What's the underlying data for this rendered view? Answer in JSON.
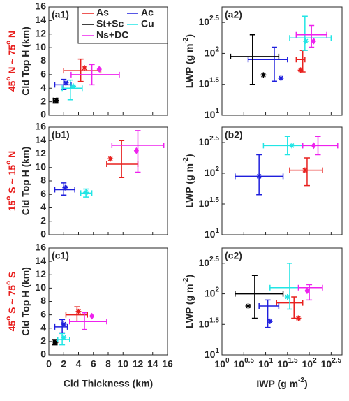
{
  "chart_data": [
    {
      "type": "scatter",
      "label": "(a1)",
      "row_label": [
        "45",
        "o",
        " N ~ 75",
        "o",
        " N"
      ],
      "ylabel": "Cld Top H (km)",
      "xlim": [
        0,
        16
      ],
      "ylim": [
        0,
        16
      ],
      "xticks": [
        0,
        2,
        4,
        6,
        8,
        10,
        12,
        14,
        16
      ],
      "yticks": [
        0,
        2,
        4,
        6,
        8,
        10,
        12,
        14,
        16
      ],
      "legend": "top-right",
      "series": [
        {
          "name": "As",
          "color": "#e8201e",
          "marker": "star",
          "x": 4.3,
          "y": 6.6,
          "xerr": [
            2,
            7
          ],
          "yerr": [
            5,
            8.3
          ],
          "marker_x": 4.8,
          "marker_y": 7.0
        },
        {
          "name": "Ac",
          "color": "#1f1fdd",
          "marker": "star",
          "x": 2,
          "y": 4.5,
          "xerr": [
            0.8,
            3
          ],
          "yerr": [
            3.8,
            5.3
          ],
          "marker_x": 2.3,
          "marker_y": 4.8
        },
        {
          "name": "St+Sc",
          "color": "#000000",
          "marker": "star",
          "x": 0.9,
          "y": 2.2,
          "xerr": [
            0.6,
            1.2
          ],
          "yerr": [
            1.8,
            2.5
          ],
          "marker_x": 1.0,
          "marker_y": 2.2
        },
        {
          "name": "Cu",
          "color": "#22e5e5",
          "marker": "star",
          "x": 2.9,
          "y": 4.0,
          "xerr": [
            1.8,
            4.5
          ],
          "yerr": [
            2.3,
            5.2
          ],
          "marker_x": 3.3,
          "marker_y": 4.3
        },
        {
          "name": "Ns+DC",
          "color": "#ee22ee",
          "marker": "diamond",
          "x": 5.8,
          "y": 6.0,
          "xerr": [
            3,
            9.5
          ],
          "yerr": [
            4.5,
            7.5
          ],
          "marker_x": 6.8,
          "marker_y": 6.8
        }
      ]
    },
    {
      "type": "scatter",
      "label": "(a2)",
      "ylabel": [
        "LWP (g m",
        "-2",
        ")"
      ],
      "log": true,
      "xlim": [
        1,
        562.3
      ],
      "ylim": [
        10,
        562.3
      ],
      "xticks": [
        {
          "value": 1,
          "label": "10",
          "exp": "0"
        },
        {
          "value": 3.162,
          "label": "10",
          "exp": "0.5"
        },
        {
          "value": 10,
          "label": "10",
          "exp": "1"
        },
        {
          "value": 31.62,
          "label": "10",
          "exp": "1.5"
        },
        {
          "value": 100,
          "label": "10",
          "exp": "2"
        },
        {
          "value": 316.2,
          "label": "10",
          "exp": "2.5"
        }
      ],
      "yticks": [
        {
          "value": 10,
          "label": "10",
          "exp": "1"
        },
        {
          "value": 31.62,
          "label": "10",
          "exp": "1.5"
        },
        {
          "value": 100,
          "label": "10",
          "exp": "2"
        },
        {
          "value": 316.2,
          "label": "10",
          "exp": "2.5"
        }
      ],
      "series": [
        {
          "color": "#e8201e",
          "marker": "star",
          "x": 70.8,
          "y": 79.4,
          "xerr": [
            50.1,
            79.4
          ],
          "yerr": [
            50.1,
            112
          ],
          "marker_x": 63.1,
          "marker_y": 53.7
        },
        {
          "color": "#1f1fdd",
          "marker": "star",
          "x": 15.8,
          "y": 79.4,
          "xerr": [
            3.98,
            31.6
          ],
          "yerr": [
            35.5,
            126
          ],
          "marker_x": 22.4,
          "marker_y": 39.8
        },
        {
          "color": "#000000",
          "marker": "star",
          "x": 5.01,
          "y": 89.1,
          "xerr": [
            1.58,
            20.0
          ],
          "yerr": [
            31.6,
            200
          ],
          "marker_x": 8.91,
          "marker_y": 44.7
        },
        {
          "color": "#22e5e5",
          "marker": "star",
          "x": 79.4,
          "y": 178,
          "xerr": [
            35.5,
            316
          ],
          "yerr": [
            112,
            398
          ],
          "marker_x": 83.2,
          "marker_y": 158
        },
        {
          "color": "#ee22ee",
          "marker": "diamond",
          "x": 112,
          "y": 200,
          "xerr": [
            50.1,
            251
          ],
          "yerr": [
            126,
            282
          ],
          "marker_x": 126,
          "marker_y": 158
        }
      ]
    },
    {
      "type": "scatter",
      "label": "(b1)",
      "row_label": [
        "15",
        "o",
        " S ~ 15",
        "o",
        " N"
      ],
      "ylabel": "Cld Top H (km)",
      "xlim": [
        0,
        16
      ],
      "ylim": [
        0,
        16
      ],
      "xticks": [
        0,
        2,
        4,
        6,
        8,
        10,
        12,
        14,
        16
      ],
      "yticks": [
        0,
        2,
        4,
        6,
        8,
        10,
        12,
        14,
        16
      ],
      "series": [
        {
          "color": "#e8201e",
          "marker": "star",
          "x": 9.8,
          "y": 10.5,
          "xerr": [
            7.8,
            12
          ],
          "yerr": [
            8.5,
            14
          ],
          "marker_x": 8.3,
          "marker_y": 11.3
        },
        {
          "color": "#1f1fdd",
          "marker": "star",
          "x": 2,
          "y": 6.7,
          "xerr": [
            0.8,
            3.5
          ],
          "yerr": [
            5.9,
            7.7
          ],
          "marker_x": 2.2,
          "marker_y": 7.0
        },
        {
          "color": "#22e5e5",
          "marker": "star",
          "x": 5,
          "y": 6.2,
          "xerr": [
            4.3,
            5.8
          ],
          "yerr": [
            5.6,
            6.8
          ],
          "marker_x": 5.0,
          "marker_y": 6.3
        },
        {
          "color": "#ee22ee",
          "marker": "diamond",
          "x": 12,
          "y": 13.3,
          "xerr": [
            8.5,
            15.5
          ],
          "yerr": [
            9.3,
            15.5
          ],
          "marker_x": 11.8,
          "marker_y": 12.5
        }
      ]
    },
    {
      "type": "scatter",
      "label": "(b2)",
      "ylabel": [
        "LWP (g m",
        "-2",
        ")"
      ],
      "log": true,
      "xlim": [
        1,
        562.3
      ],
      "ylim": [
        10,
        562.3
      ],
      "xticks": [
        {
          "value": 1,
          "label": "10",
          "exp": "0"
        },
        {
          "value": 3.162,
          "label": "10",
          "exp": "0.5"
        },
        {
          "value": 10,
          "label": "10",
          "exp": "1"
        },
        {
          "value": 31.62,
          "label": "10",
          "exp": "1.5"
        },
        {
          "value": 100,
          "label": "10",
          "exp": "2"
        },
        {
          "value": 316.2,
          "label": "10",
          "exp": "2.5"
        }
      ],
      "yticks": [
        {
          "value": 10,
          "label": "10",
          "exp": "1"
        },
        {
          "value": 31.62,
          "label": "10",
          "exp": "1.5"
        },
        {
          "value": 100,
          "label": "10",
          "exp": "2"
        },
        {
          "value": 316.2,
          "label": "10",
          "exp": "2.5"
        }
      ],
      "series": [
        {
          "color": "#e8201e",
          "marker": "star",
          "x": 89.1,
          "y": 112,
          "xerr": [
            35.5,
            200
          ],
          "yerr": [
            63.1,
            178
          ],
          "marker_x": 79.4,
          "marker_y": 112
        },
        {
          "color": "#1f1fdd",
          "marker": "star",
          "x": 7.08,
          "y": 89.1,
          "xerr": [
            2.0,
            25.1
          ],
          "yerr": [
            44.7,
            200
          ],
          "marker_x": 7.08,
          "marker_y": 89.1
        },
        {
          "color": "#22e5e5",
          "marker": "star",
          "x": 31.6,
          "y": 282,
          "xerr": [
            8.91,
            70.8
          ],
          "yerr": [
            200,
            398
          ],
          "marker_x": 39.8,
          "marker_y": 282
        },
        {
          "color": "#ee22ee",
          "marker": "diamond",
          "x": 158,
          "y": 282,
          "xerr": [
            70.8,
            447
          ],
          "yerr": [
            200,
            398
          ],
          "marker_x": 126,
          "marker_y": 282
        }
      ]
    },
    {
      "type": "scatter",
      "label": "(c1)",
      "row_label": [
        "45",
        "o",
        " S ~ 75",
        "o",
        " S"
      ],
      "ylabel": "Cld Top H (km)",
      "xlabel": "Cld Thickness (km)",
      "xlim": [
        0,
        16
      ],
      "ylim": [
        0,
        16
      ],
      "xticks": [
        0,
        2,
        4,
        6,
        8,
        10,
        12,
        14,
        16
      ],
      "yticks": [
        0,
        2,
        4,
        6,
        8,
        10,
        12,
        14,
        16
      ],
      "series": [
        {
          "color": "#e8201e",
          "marker": "star",
          "x": 3.8,
          "y": 6.0,
          "xerr": [
            2.3,
            5.2
          ],
          "yerr": [
            5.0,
            7.2
          ],
          "marker_x": 4.0,
          "marker_y": 6.5
        },
        {
          "color": "#1f1fdd",
          "marker": "star",
          "x": 1.8,
          "y": 4.2,
          "xerr": [
            0.8,
            2.5
          ],
          "yerr": [
            3.3,
            5.3
          ],
          "marker_x": 2.0,
          "marker_y": 4.6
        },
        {
          "color": "#000000",
          "marker": "star",
          "x": 0.8,
          "y": 1.9,
          "xerr": [
            0.6,
            1.1
          ],
          "yerr": [
            1.5,
            2.3
          ],
          "marker_x": 0.9,
          "marker_y": 1.9
        },
        {
          "color": "#22e5e5",
          "marker": "star",
          "x": 1.8,
          "y": 2.3,
          "xerr": [
            1.2,
            2.8
          ],
          "yerr": [
            1.5,
            3.2
          ],
          "marker_x": 2.0,
          "marker_y": 2.6
        },
        {
          "color": "#ee22ee",
          "marker": "diamond",
          "x": 4.8,
          "y": 5.0,
          "xerr": [
            2.8,
            7.8
          ],
          "yerr": [
            3.8,
            6.3
          ],
          "marker_x": 5.8,
          "marker_y": 5.8
        }
      ]
    },
    {
      "type": "scatter",
      "label": "(c2)",
      "ylabel": [
        "LWP (g m",
        "-2",
        ")"
      ],
      "xlabel": [
        "IWP (g m",
        "-2",
        ")"
      ],
      "log": true,
      "xlim": [
        1,
        562.3
      ],
      "ylim": [
        10,
        562.3
      ],
      "xticks": [
        {
          "value": 1,
          "label": "10",
          "exp": "0"
        },
        {
          "value": 3.162,
          "label": "10",
          "exp": "0.5"
        },
        {
          "value": 10,
          "label": "10",
          "exp": "1"
        },
        {
          "value": 31.62,
          "label": "10",
          "exp": "1.5"
        },
        {
          "value": 100,
          "label": "10",
          "exp": "2"
        },
        {
          "value": 316.2,
          "label": "10",
          "exp": "2.5"
        }
      ],
      "yticks": [
        {
          "value": 10,
          "label": "10",
          "exp": "1"
        },
        {
          "value": 31.62,
          "label": "10",
          "exp": "1.5"
        },
        {
          "value": 100,
          "label": "10",
          "exp": "2"
        },
        {
          "value": 316.2,
          "label": "10",
          "exp": "2.5"
        }
      ],
      "series": [
        {
          "color": "#e8201e",
          "marker": "star",
          "x": 44.7,
          "y": 70.8,
          "xerr": [
            17.8,
            70.8
          ],
          "yerr": [
            39.8,
            89.1
          ],
          "marker_x": 56.2,
          "marker_y": 39.8
        },
        {
          "color": "#1f1fdd",
          "marker": "star",
          "x": 11.2,
          "y": 63.1,
          "xerr": [
            7.08,
            20.0
          ],
          "yerr": [
            28.2,
            79.4
          ],
          "marker_x": 12.6,
          "marker_y": 35.5
        },
        {
          "color": "#000000",
          "marker": "star",
          "x": 5.62,
          "y": 100,
          "xerr": [
            2.0,
            25.1
          ],
          "yerr": [
            39.8,
            200
          ],
          "marker_x": 3.98,
          "marker_y": 63.1
        },
        {
          "color": "#22e5e5",
          "marker": "star",
          "x": 35.5,
          "y": 126,
          "xerr": [
            12.6,
            100
          ],
          "yerr": [
            56.2,
            316
          ],
          "marker_x": 31.6,
          "marker_y": 89.1
        },
        {
          "color": "#ee22ee",
          "marker": "diamond",
          "x": 100,
          "y": 126,
          "xerr": [
            56.2,
            200
          ],
          "yerr": [
            79.4,
            141
          ],
          "marker_x": 89.1,
          "marker_y": 112
        }
      ]
    }
  ]
}
